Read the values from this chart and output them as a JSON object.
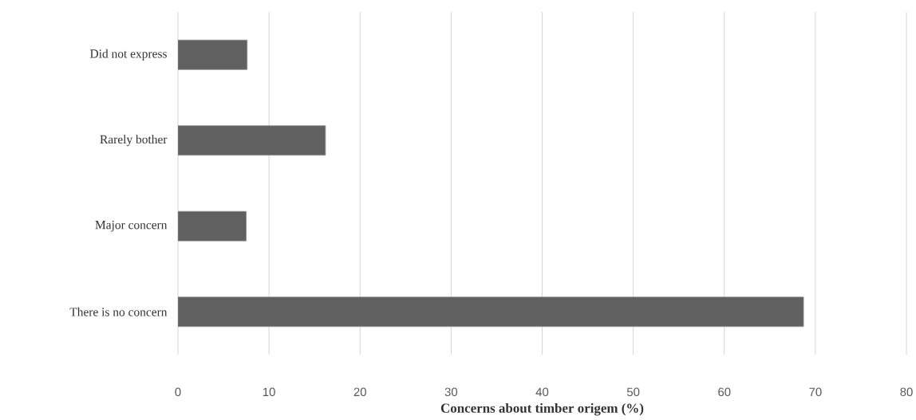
{
  "chart_data": {
    "type": "bar",
    "orientation": "horizontal",
    "xlabel": "Concerns about timber origem (%)",
    "categories": [
      "Did not express",
      "Rarely bother",
      "Major concern",
      "There is no concern"
    ],
    "values": [
      7.6,
      16.2,
      7.5,
      68.7
    ],
    "color": "#606060",
    "xlim": [
      0,
      80
    ],
    "xticks": [
      0,
      10,
      20,
      30,
      40,
      50,
      60,
      70,
      80
    ],
    "grid": "x"
  }
}
